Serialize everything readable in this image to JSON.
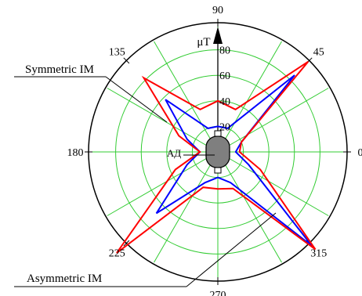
{
  "chart_data": {
    "type": "polar-line",
    "unit_label": "μT",
    "motor_label": "АД",
    "radial_ticks": [
      20,
      40,
      60,
      80
    ],
    "radial_max": 100,
    "angle_labels": [
      {
        "deg": 0,
        "text": "0"
      },
      {
        "deg": 45,
        "text": "45"
      },
      {
        "deg": 90,
        "text": "90"
      },
      {
        "deg": 135,
        "text": "135"
      },
      {
        "deg": 180,
        "text": "180"
      },
      {
        "deg": 225,
        "text": "225"
      },
      {
        "deg": 270,
        "text": "270"
      },
      {
        "deg": 315,
        "text": "315"
      }
    ],
    "series": [
      {
        "name": "Symmetric IM",
        "color": "#0000ff",
        "points": [
          {
            "angle": 0,
            "value": 14
          },
          {
            "angle": 22.5,
            "value": 20
          },
          {
            "angle": 45,
            "value": 85
          },
          {
            "angle": 67.5,
            "value": 20
          },
          {
            "angle": 90,
            "value": 20
          },
          {
            "angle": 112.5,
            "value": 20
          },
          {
            "angle": 135,
            "value": 58
          },
          {
            "angle": 157.5,
            "value": 26
          },
          {
            "angle": 180,
            "value": 14
          },
          {
            "angle": 202.5,
            "value": 26
          },
          {
            "angle": 225,
            "value": 68
          },
          {
            "angle": 247.5,
            "value": 26
          },
          {
            "angle": 270,
            "value": 20
          },
          {
            "angle": 292.5,
            "value": 26
          },
          {
            "angle": 315,
            "value": 104
          },
          {
            "angle": 337.5,
            "value": 26
          }
        ]
      },
      {
        "name": "Asymmetric IM",
        "color": "#ff0000",
        "points": [
          {
            "angle": 0,
            "value": 17
          },
          {
            "angle": 22.5,
            "value": 20
          },
          {
            "angle": 45,
            "value": 100
          },
          {
            "angle": 67.5,
            "value": 36
          },
          {
            "angle": 90,
            "value": 40
          },
          {
            "angle": 112.5,
            "value": 36
          },
          {
            "angle": 135,
            "value": 82
          },
          {
            "angle": 157.5,
            "value": 33
          },
          {
            "angle": 180,
            "value": 14
          },
          {
            "angle": 202.5,
            "value": 36
          },
          {
            "angle": 225,
            "value": 112
          },
          {
            "angle": 247.5,
            "value": 30
          },
          {
            "angle": 270,
            "value": 29
          },
          {
            "angle": 292.5,
            "value": 31
          },
          {
            "angle": 315,
            "value": 108
          },
          {
            "angle": 337.5,
            "value": 36
          }
        ]
      }
    ]
  },
  "annotations": {
    "symmetric_label": "Symmetric IM",
    "asymmetric_label": "Asymmetric IM"
  },
  "colors": {
    "grid": "#33cc33",
    "axis": "#000000",
    "motor_fill": "#7f7f7f"
  }
}
